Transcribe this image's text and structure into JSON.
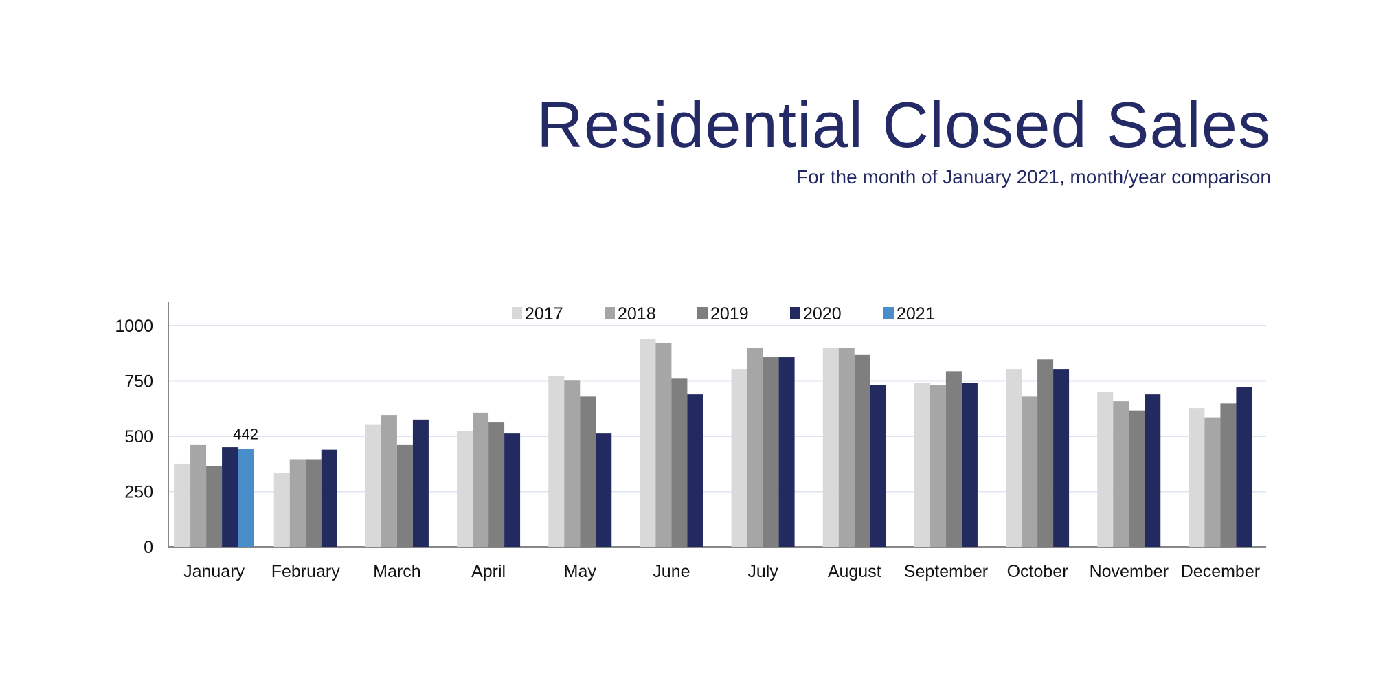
{
  "title": "Residential Closed Sales",
  "subtitle": "For the month of January 2021, month/year comparison",
  "chart_data": {
    "type": "bar",
    "title": "Residential Closed Sales",
    "subtitle": "For the month of January 2021, month/year comparison",
    "categories": [
      "January",
      "February",
      "March",
      "April",
      "May",
      "June",
      "July",
      "August",
      "September",
      "October",
      "November",
      "December"
    ],
    "series": [
      {
        "name": "2017",
        "color": "#d9d9d9",
        "values": [
          376,
          334,
          554,
          523,
          773,
          941,
          804,
          899,
          742,
          804,
          700,
          627
        ]
      },
      {
        "name": "2018",
        "color": "#a6a6a6",
        "values": [
          460,
          396,
          596,
          606,
          754,
          920,
          899,
          899,
          732,
          679,
          658,
          585
        ]
      },
      {
        "name": "2019",
        "color": "#7f7f7f",
        "values": [
          365,
          396,
          460,
          565,
          679,
          763,
          857,
          867,
          794,
          847,
          616,
          648
        ]
      },
      {
        "name": "2020",
        "color": "#232a5f",
        "values": [
          450,
          439,
          575,
          512,
          512,
          689,
          857,
          732,
          742,
          804,
          689,
          722
        ]
      },
      {
        "name": "2021",
        "color": "#4a8dcb",
        "values": [
          442,
          null,
          null,
          null,
          null,
          null,
          null,
          null,
          null,
          null,
          null,
          null
        ]
      }
    ],
    "data_labels": [
      {
        "series": "2021",
        "category": "January",
        "text": "442"
      }
    ],
    "yticks": [
      "0",
      "250",
      "500",
      "750",
      "1000"
    ],
    "ylim": [
      0,
      1100
    ],
    "grid": true,
    "legend": "top",
    "xlabel": "",
    "ylabel": ""
  }
}
